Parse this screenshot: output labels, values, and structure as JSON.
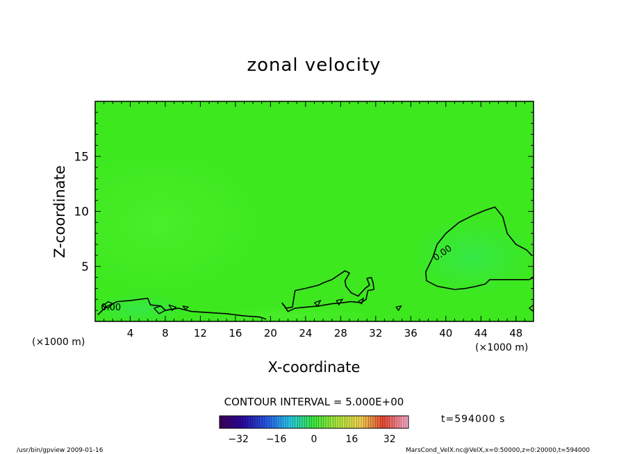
{
  "chart_data": {
    "type": "heatmap",
    "title": "zonal velocity",
    "xlabel": "X-coordinate",
    "ylabel": "Z-coordinate",
    "x_unit": "(×1000 m)",
    "z_unit": "(×1000 m)",
    "xlim": [
      0,
      50
    ],
    "ylim": [
      0,
      20
    ],
    "x_ticks": [
      4,
      8,
      12,
      16,
      20,
      24,
      28,
      32,
      36,
      40,
      44,
      48
    ],
    "y_ticks": [
      5,
      10,
      15
    ],
    "contour_label": "0.00",
    "contour_interval_label": "CONTOUR INTERVAL = 5.000E+00",
    "colorbar": {
      "ticks": [
        -32,
        -16,
        0,
        16,
        32
      ],
      "range": [
        -40,
        40
      ]
    },
    "time_label": "t=594000 s",
    "contours_zero": [
      [
        [
          38.5,
          5.8
        ],
        [
          39.0,
          7.0
        ],
        [
          40.0,
          8.0
        ],
        [
          41.5,
          9.0
        ],
        [
          43.0,
          9.6
        ],
        [
          44.5,
          10.1
        ],
        [
          45.6,
          10.4
        ],
        [
          46.5,
          9.5
        ],
        [
          47.0,
          8.0
        ],
        [
          48.0,
          7.0
        ],
        [
          49.2,
          6.5
        ],
        [
          49.8,
          6.0
        ]
      ],
      [
        [
          38.5,
          5.8
        ],
        [
          37.7,
          4.5
        ],
        [
          37.8,
          3.7
        ],
        [
          39.0,
          3.2
        ],
        [
          41.0,
          2.9
        ],
        [
          42.3,
          3.0
        ],
        [
          43.5,
          3.2
        ],
        [
          44.5,
          3.4
        ],
        [
          45.0,
          3.8
        ],
        [
          46.5,
          3.8
        ],
        [
          48.0,
          3.8
        ],
        [
          49.5,
          3.8
        ],
        [
          50.0,
          4.0
        ]
      ],
      [
        [
          0.3,
          0.6
        ],
        [
          1.2,
          1.3
        ],
        [
          2.5,
          1.8
        ],
        [
          4.0,
          1.9
        ],
        [
          5.0,
          2.0
        ],
        [
          6.0,
          2.1
        ],
        [
          6.3,
          1.5
        ],
        [
          7.5,
          1.4
        ],
        [
          8.0,
          1.0
        ],
        [
          9.5,
          1.2
        ],
        [
          11.0,
          0.9
        ],
        [
          13.0,
          0.8
        ],
        [
          15.0,
          0.7
        ],
        [
          17.0,
          0.5
        ],
        [
          18.8,
          0.4
        ],
        [
          19.5,
          0.2
        ]
      ],
      [
        [
          21.3,
          1.7
        ],
        [
          21.8,
          1.2
        ],
        [
          22.5,
          1.3
        ],
        [
          22.8,
          2.8
        ],
        [
          24.0,
          3.0
        ],
        [
          25.5,
          3.3
        ],
        [
          26.0,
          3.5
        ],
        [
          27.0,
          3.8
        ],
        [
          28.5,
          4.6
        ],
        [
          29.0,
          4.4
        ],
        [
          28.5,
          3.7
        ],
        [
          28.6,
          3.2
        ],
        [
          29.2,
          2.6
        ],
        [
          30.0,
          2.3
        ],
        [
          30.8,
          3.0
        ],
        [
          31.3,
          3.3
        ],
        [
          31.0,
          3.9
        ],
        [
          31.5,
          4.0
        ],
        [
          31.7,
          3.5
        ],
        [
          31.8,
          2.9
        ],
        [
          31.1,
          2.8
        ],
        [
          30.9,
          2.0
        ],
        [
          30.3,
          1.7
        ],
        [
          29.2,
          1.8
        ],
        [
          28.2,
          1.7
        ],
        [
          27.0,
          1.6
        ],
        [
          25.5,
          1.4
        ],
        [
          24.0,
          1.3
        ],
        [
          22.8,
          1.2
        ],
        [
          22.0,
          0.9
        ],
        [
          21.3,
          1.7
        ]
      ]
    ],
    "contours_small": [
      [
        [
          0.8,
          1.4
        ],
        [
          1.5,
          1.8
        ],
        [
          2.0,
          1.6
        ],
        [
          1.5,
          1.2
        ],
        [
          0.8,
          1.4
        ]
      ],
      [
        [
          6.7,
          1.2
        ],
        [
          7.5,
          1.4
        ],
        [
          8.0,
          1.0
        ],
        [
          7.3,
          0.7
        ],
        [
          6.7,
          1.2
        ]
      ],
      [
        [
          8.4,
          1.5
        ],
        [
          9.2,
          1.3
        ],
        [
          8.8,
          1.0
        ],
        [
          8.4,
          1.5
        ]
      ],
      [
        [
          10.0,
          1.4
        ],
        [
          10.6,
          1.3
        ],
        [
          10.3,
          1.1
        ],
        [
          10.0,
          1.4
        ]
      ],
      [
        [
          25.0,
          1.7
        ],
        [
          25.7,
          1.9
        ],
        [
          25.4,
          1.4
        ],
        [
          25.0,
          1.7
        ]
      ],
      [
        [
          27.5,
          1.9
        ],
        [
          28.2,
          2.0
        ],
        [
          27.8,
          1.5
        ],
        [
          27.5,
          1.9
        ]
      ],
      [
        [
          30.0,
          1.8
        ],
        [
          30.6,
          2.1
        ],
        [
          30.4,
          1.6
        ],
        [
          30.0,
          1.8
        ]
      ],
      [
        [
          34.3,
          1.3
        ],
        [
          34.9,
          1.4
        ],
        [
          34.6,
          1.0
        ],
        [
          34.3,
          1.3
        ]
      ],
      [
        [
          49.5,
          1.2
        ],
        [
          50.0,
          1.5
        ],
        [
          50.0,
          0.9
        ],
        [
          49.5,
          1.2
        ]
      ]
    ],
    "contour_labels_at": [
      [
        1.8,
        1.0
      ],
      [
        39.8,
        6.0
      ]
    ],
    "footer_left": "/usr/bin/gpview   2009-01-16",
    "footer_right": "MarsCond_VelX.nc@VelX,x=0:50000,z=0:20000,t=594000"
  }
}
